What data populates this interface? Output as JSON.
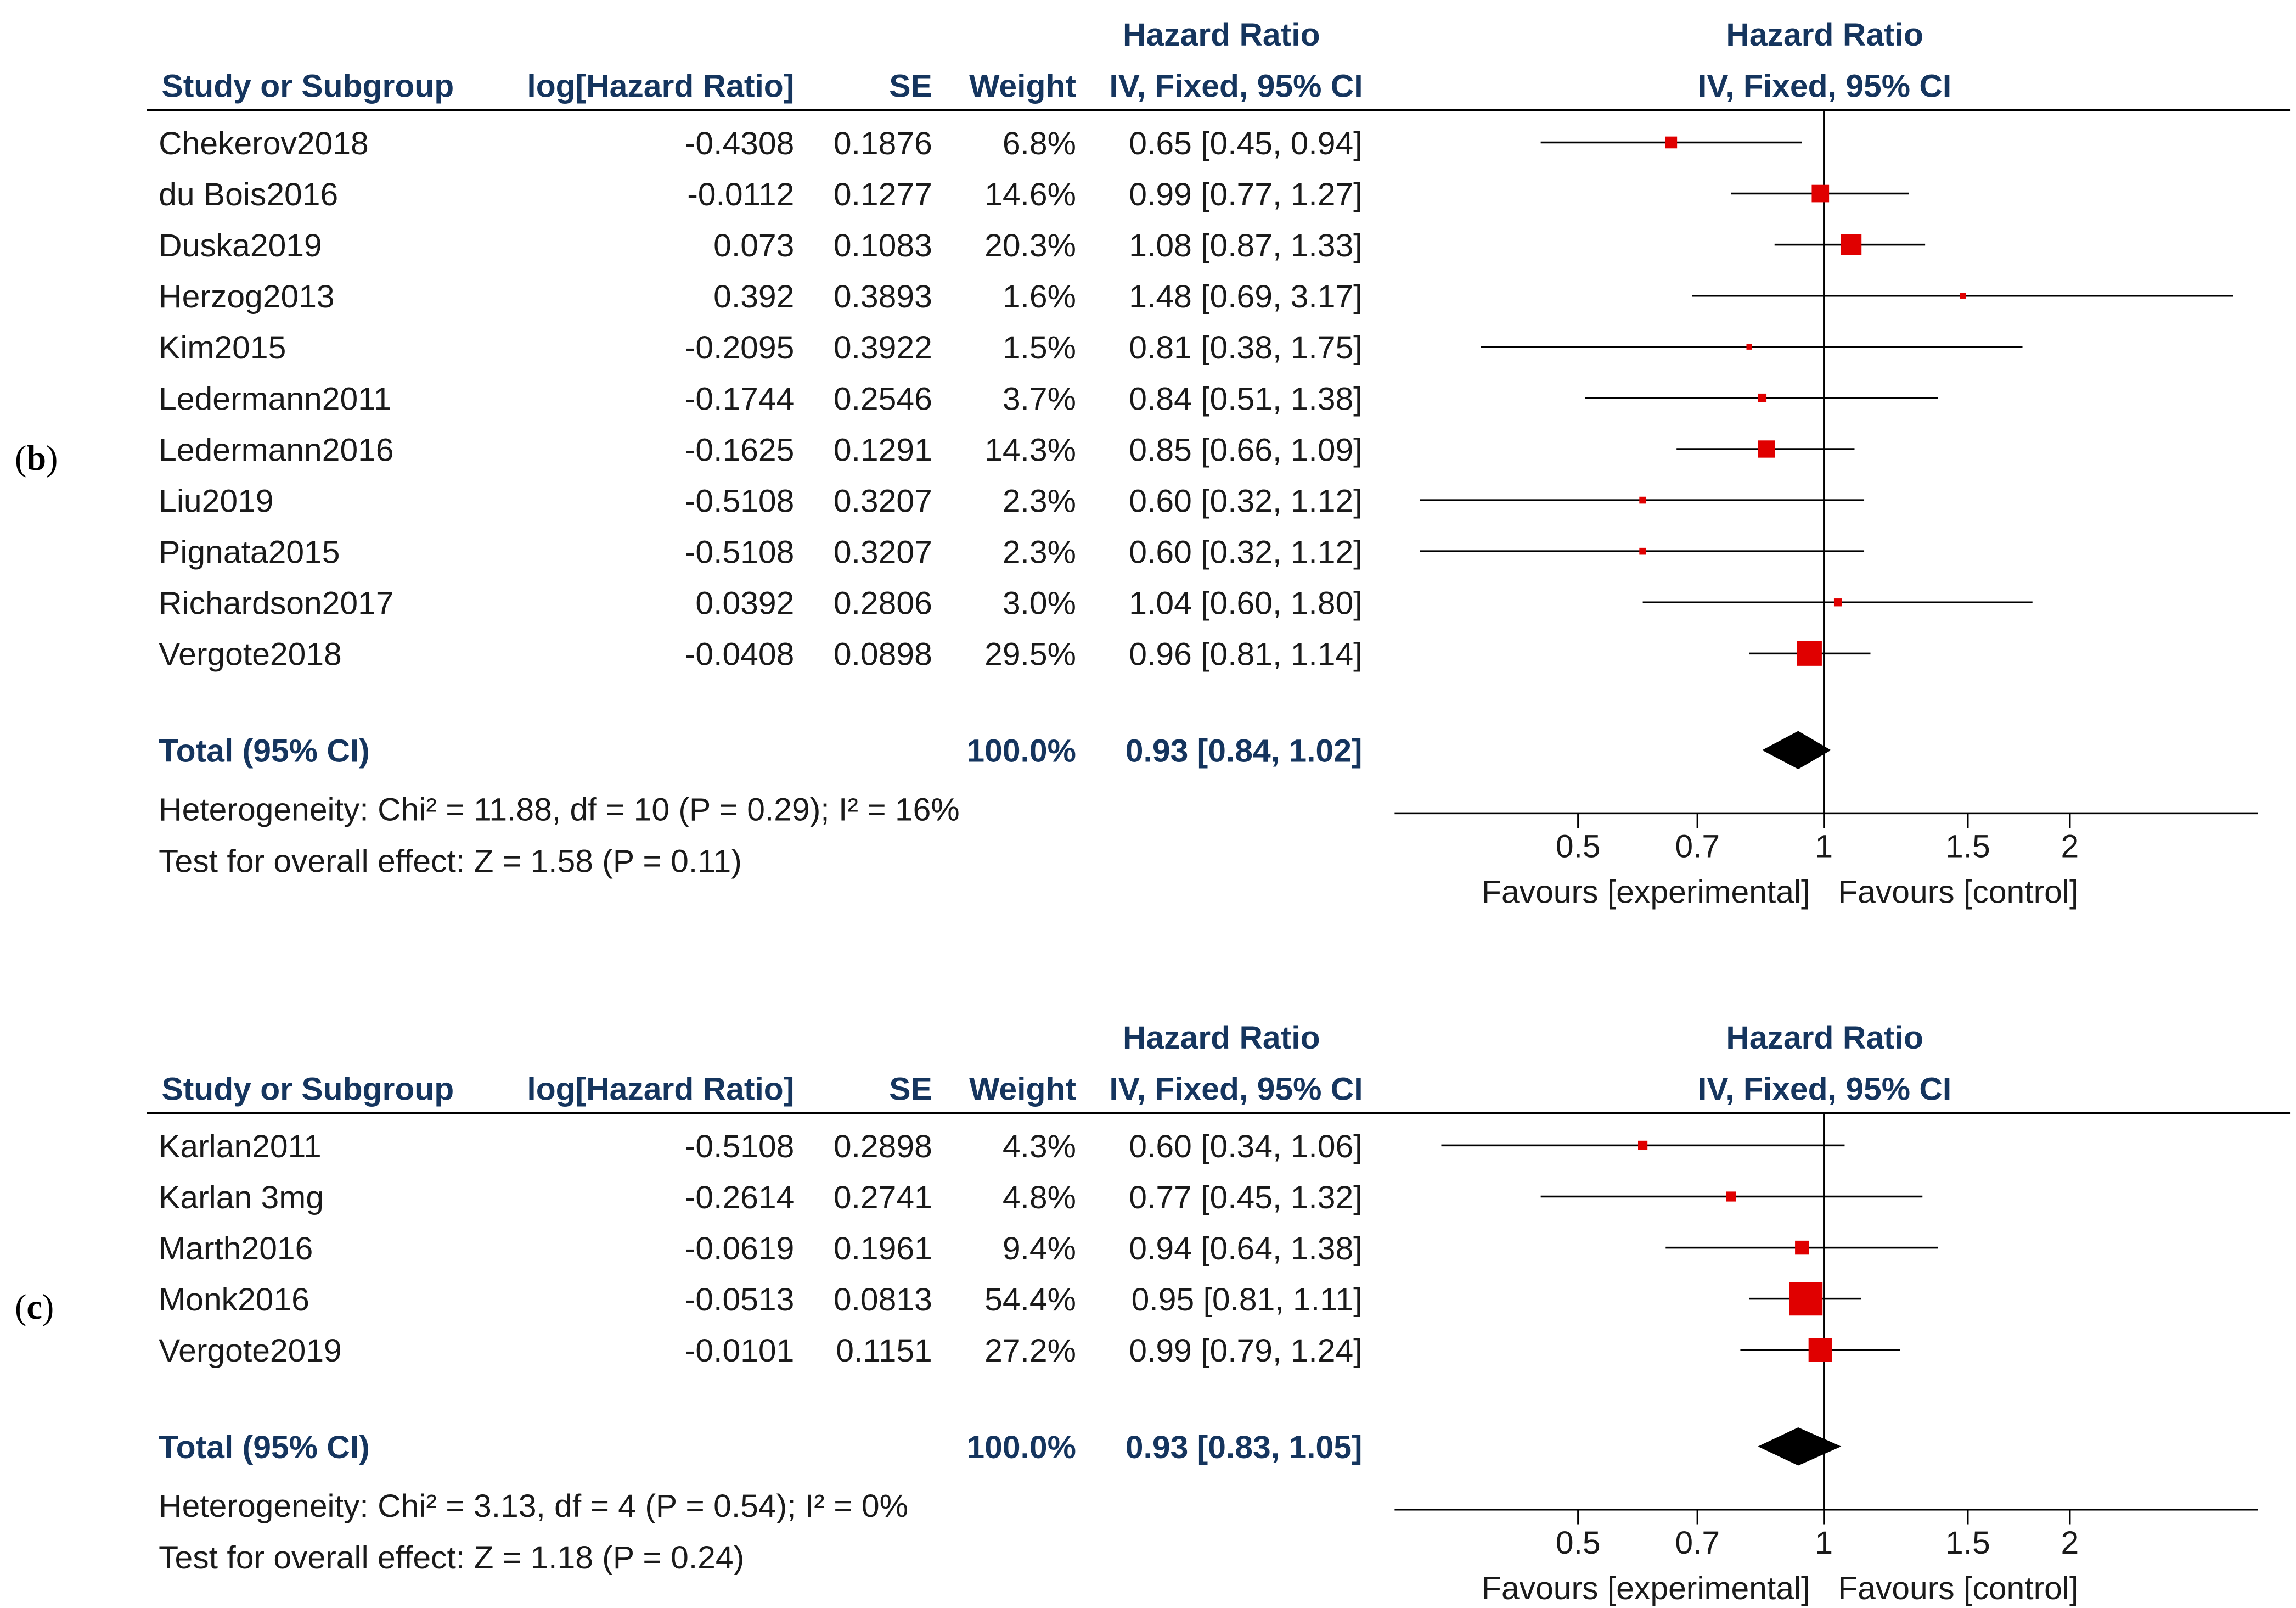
{
  "panels": [
    {
      "panel_label_open": "(",
      "panel_label_letter": "b",
      "panel_label_close": ")",
      "headers": {
        "study": "Study or Subgroup",
        "loghr": "log[Hazard Ratio]",
        "se": "SE",
        "weight": "Weight",
        "hr_title": "Hazard Ratio",
        "hr_method": "IV, Fixed, 95% CI",
        "plot_title": "Hazard Ratio",
        "plot_method": "IV, Fixed, 95% CI"
      },
      "rows": [
        {
          "study": "Chekerov2018",
          "loghr": "-0.4308",
          "se": "0.1876",
          "weight": "6.8%",
          "ci": "0.65 [0.45, 0.94]"
        },
        {
          "study": "du Bois2016",
          "loghr": "-0.0112",
          "se": "0.1277",
          "weight": "14.6%",
          "ci": "0.99 [0.77, 1.27]"
        },
        {
          "study": "Duska2019",
          "loghr": "0.073",
          "se": "0.1083",
          "weight": "20.3%",
          "ci": "1.08 [0.87, 1.33]"
        },
        {
          "study": "Herzog2013",
          "loghr": "0.392",
          "se": "0.3893",
          "weight": "1.6%",
          "ci": "1.48 [0.69, 3.17]"
        },
        {
          "study": "Kim2015",
          "loghr": "-0.2095",
          "se": "0.3922",
          "weight": "1.5%",
          "ci": "0.81 [0.38, 1.75]"
        },
        {
          "study": "Ledermann2011",
          "loghr": "-0.1744",
          "se": "0.2546",
          "weight": "3.7%",
          "ci": "0.84 [0.51, 1.38]"
        },
        {
          "study": "Ledermann2016",
          "loghr": "-0.1625",
          "se": "0.1291",
          "weight": "14.3%",
          "ci": "0.85 [0.66, 1.09]"
        },
        {
          "study": "Liu2019",
          "loghr": "-0.5108",
          "se": "0.3207",
          "weight": "2.3%",
          "ci": "0.60 [0.32, 1.12]"
        },
        {
          "study": "Pignata2015",
          "loghr": "-0.5108",
          "se": "0.3207",
          "weight": "2.3%",
          "ci": "0.60 [0.32, 1.12]"
        },
        {
          "study": "Richardson2017",
          "loghr": "0.0392",
          "se": "0.2806",
          "weight": "3.0%",
          "ci": "1.04 [0.60, 1.80]"
        },
        {
          "study": "Vergote2018",
          "loghr": "-0.0408",
          "se": "0.0898",
          "weight": "29.5%",
          "ci": "0.96 [0.81, 1.14]"
        }
      ],
      "total": {
        "label": "Total (95% CI)",
        "weight": "100.0%",
        "ci": "0.93 [0.84, 1.02]"
      },
      "heterogeneity": "Heterogeneity: Chi² = 11.88, df = 10 (P = 0.29); I² = 16%",
      "overall": "Test for overall effect: Z = 1.58 (P = 0.11)",
      "favours_left": "Favours [experimental]",
      "favours_right": "Favours [control]"
    },
    {
      "panel_label_open": "(",
      "panel_label_letter": "c",
      "panel_label_close": ")",
      "headers": {
        "study": "Study or Subgroup",
        "loghr": "log[Hazard Ratio]",
        "se": "SE",
        "weight": "Weight",
        "hr_title": "Hazard Ratio",
        "hr_method": "IV, Fixed, 95% CI",
        "plot_title": "Hazard Ratio",
        "plot_method": "IV, Fixed, 95% CI"
      },
      "rows": [
        {
          "study": "Karlan2011",
          "loghr": "-0.5108",
          "se": "0.2898",
          "weight": "4.3%",
          "ci": "0.60 [0.34, 1.06]"
        },
        {
          "study": "Karlan 3mg",
          "loghr": "-0.2614",
          "se": "0.2741",
          "weight": "4.8%",
          "ci": "0.77 [0.45, 1.32]"
        },
        {
          "study": "Marth2016",
          "loghr": "-0.0619",
          "se": "0.1961",
          "weight": "9.4%",
          "ci": "0.94 [0.64, 1.38]"
        },
        {
          "study": "Monk2016",
          "loghr": "-0.0513",
          "se": "0.0813",
          "weight": "54.4%",
          "ci": "0.95 [0.81, 1.11]"
        },
        {
          "study": "Vergote2019",
          "loghr": "-0.0101",
          "se": "0.1151",
          "weight": "27.2%",
          "ci": "0.99 [0.79, 1.24]"
        }
      ],
      "total": {
        "label": "Total (95% CI)",
        "weight": "100.0%",
        "ci": "0.93 [0.83, 1.05]"
      },
      "heterogeneity": "Heterogeneity: Chi² = 3.13, df = 4 (P = 0.54); I² = 0%",
      "overall": "Test for overall effect: Z = 1.18 (P = 0.24)",
      "favours_left": "Favours [experimental]",
      "favours_right": "Favours [control]"
    }
  ],
  "chart_data": [
    {
      "type": "forest",
      "title": "Hazard Ratio",
      "subtitle": "IV, Fixed, 95% CI",
      "scale": "log",
      "xlim": [
        0.35,
        2.7
      ],
      "ticks": [
        0.5,
        0.7,
        1,
        1.5,
        2
      ],
      "tick_labels": [
        "0.5",
        "0.7",
        "1",
        "1.5",
        "2"
      ],
      "reference_line": 1,
      "marker_color": "#e00000",
      "studies": [
        {
          "name": "Chekerov2018",
          "hr": 0.65,
          "lower": 0.45,
          "upper": 0.94,
          "weight": 6.8
        },
        {
          "name": "du Bois2016",
          "hr": 0.99,
          "lower": 0.77,
          "upper": 1.27,
          "weight": 14.6
        },
        {
          "name": "Duska2019",
          "hr": 1.08,
          "lower": 0.87,
          "upper": 1.33,
          "weight": 20.3
        },
        {
          "name": "Herzog2013",
          "hr": 1.48,
          "lower": 0.69,
          "upper": 3.17,
          "weight": 1.6
        },
        {
          "name": "Kim2015",
          "hr": 0.81,
          "lower": 0.38,
          "upper": 1.75,
          "weight": 1.5
        },
        {
          "name": "Ledermann2011",
          "hr": 0.84,
          "lower": 0.51,
          "upper": 1.38,
          "weight": 3.7
        },
        {
          "name": "Ledermann2016",
          "hr": 0.85,
          "lower": 0.66,
          "upper": 1.09,
          "weight": 14.3
        },
        {
          "name": "Liu2019",
          "hr": 0.6,
          "lower": 0.32,
          "upper": 1.12,
          "weight": 2.3
        },
        {
          "name": "Pignata2015",
          "hr": 0.6,
          "lower": 0.32,
          "upper": 1.12,
          "weight": 2.3
        },
        {
          "name": "Richardson2017",
          "hr": 1.04,
          "lower": 0.6,
          "upper": 1.8,
          "weight": 3.0
        },
        {
          "name": "Vergote2018",
          "hr": 0.96,
          "lower": 0.81,
          "upper": 1.14,
          "weight": 29.5
        }
      ],
      "pooled": {
        "hr": 0.93,
        "lower": 0.84,
        "upper": 1.02
      },
      "xlabel_left": "Favours [experimental]",
      "xlabel_right": "Favours [control]"
    },
    {
      "type": "forest",
      "title": "Hazard Ratio",
      "subtitle": "IV, Fixed, 95% CI",
      "scale": "log",
      "xlim": [
        0.35,
        2.7
      ],
      "ticks": [
        0.5,
        0.7,
        1,
        1.5,
        2
      ],
      "tick_labels": [
        "0.5",
        "0.7",
        "1",
        "1.5",
        "2"
      ],
      "reference_line": 1,
      "marker_color": "#e00000",
      "studies": [
        {
          "name": "Karlan2011",
          "hr": 0.6,
          "lower": 0.34,
          "upper": 1.06,
          "weight": 4.3
        },
        {
          "name": "Karlan 3mg",
          "hr": 0.77,
          "lower": 0.45,
          "upper": 1.32,
          "weight": 4.8
        },
        {
          "name": "Marth2016",
          "hr": 0.94,
          "lower": 0.64,
          "upper": 1.38,
          "weight": 9.4
        },
        {
          "name": "Monk2016",
          "hr": 0.95,
          "lower": 0.81,
          "upper": 1.11,
          "weight": 54.4
        },
        {
          "name": "Vergote2019",
          "hr": 0.99,
          "lower": 0.79,
          "upper": 1.24,
          "weight": 27.2
        }
      ],
      "pooled": {
        "hr": 0.93,
        "lower": 0.83,
        "upper": 1.05
      },
      "xlabel_left": "Favours [experimental]",
      "xlabel_right": "Favours [control]"
    }
  ]
}
